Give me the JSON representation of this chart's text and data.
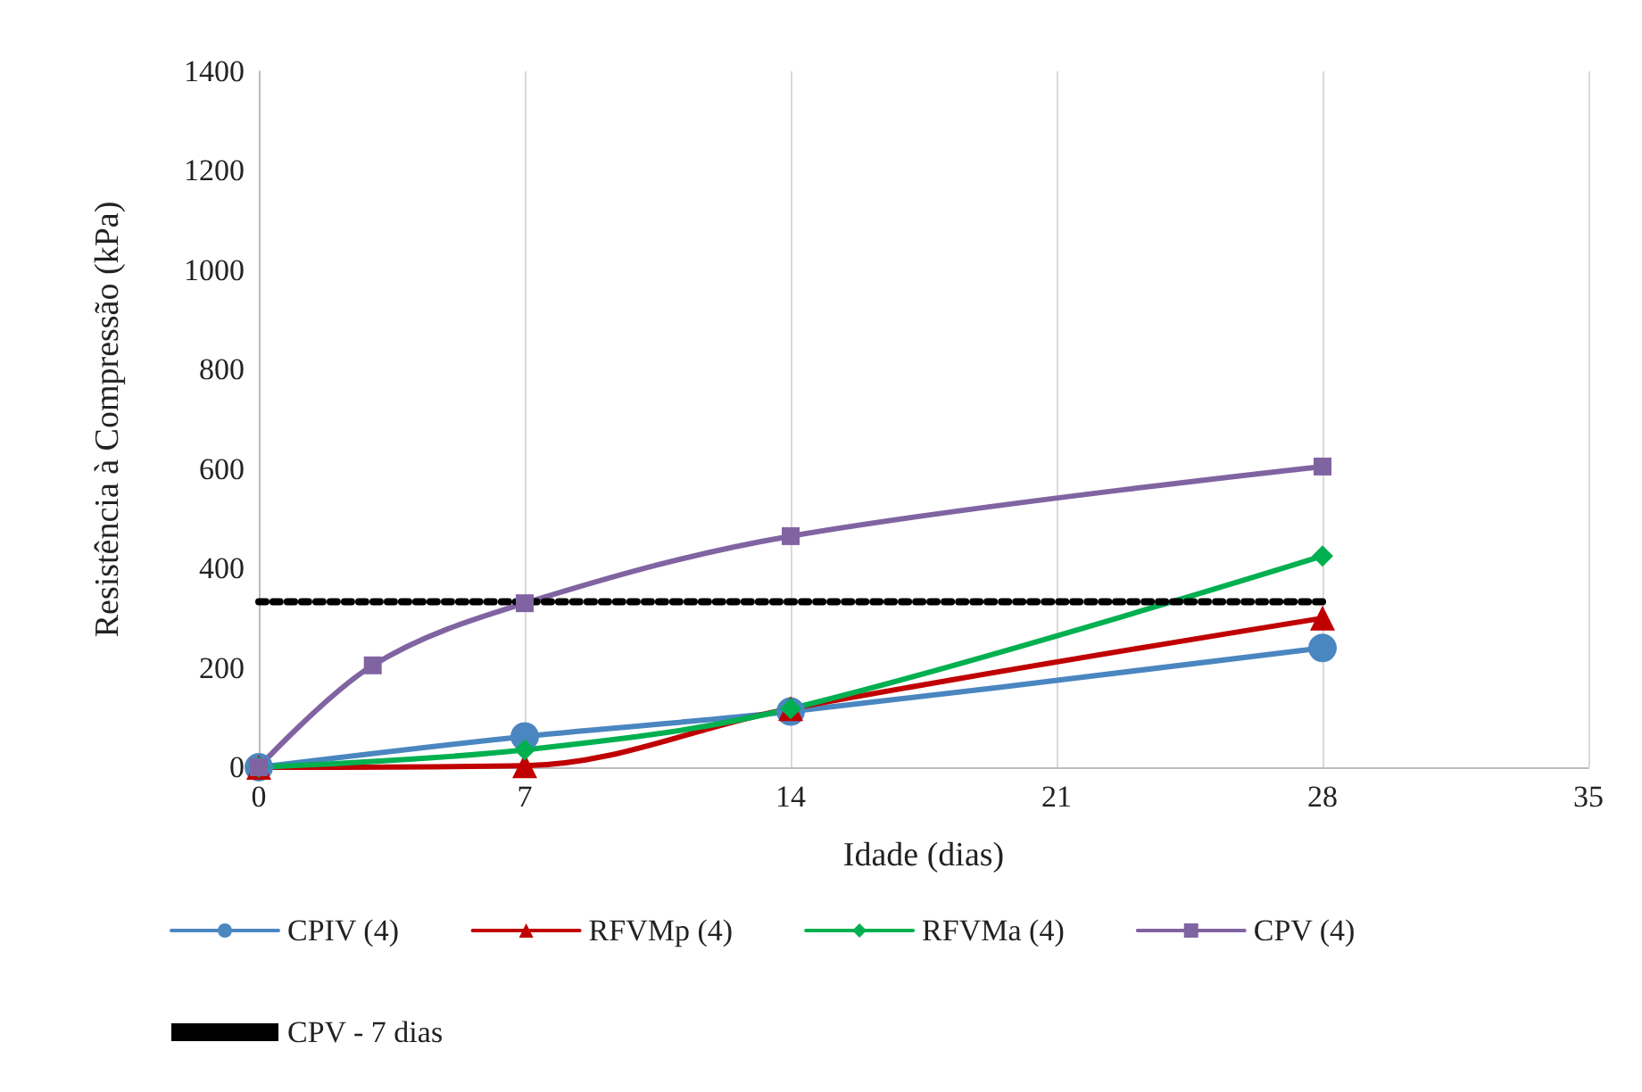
{
  "chart_data": {
    "type": "line",
    "xlabel": "Idade (dias)",
    "ylabel": "Resistência à Compressão (kPa)",
    "xlim": [
      0,
      35
    ],
    "xticks": [
      0,
      7,
      14,
      21,
      28,
      35
    ],
    "ylim": [
      0,
      1400
    ],
    "yticks": [
      0,
      200,
      400,
      600,
      800,
      1000,
      1200,
      1400
    ],
    "grid": "x",
    "legend": "bottom",
    "series": [
      {
        "name": "CPIV (4)",
        "color": "#4a86c0",
        "marker": "circle",
        "x": [
          0,
          7,
          14,
          28
        ],
        "values": [
          0,
          62,
          112,
          240
        ]
      },
      {
        "name": "RFVMp (4)",
        "color": "#c00000",
        "marker": "triangle",
        "x": [
          0,
          7,
          14,
          28
        ],
        "values": [
          0,
          3,
          118,
          300
        ]
      },
      {
        "name": "RFVMa (4)",
        "color": "#00b050",
        "marker": "diamond",
        "x": [
          0,
          7,
          14,
          28
        ],
        "values": [
          0,
          35,
          118,
          425
        ]
      },
      {
        "name": "CPV (4)",
        "color": "#8064a2",
        "marker": "square",
        "x": [
          0,
          3,
          7,
          14,
          28
        ],
        "values": [
          0,
          205,
          330,
          465,
          605
        ]
      },
      {
        "name": "CPV - 7 dias",
        "color": "#000000",
        "marker": "none",
        "line_style": "dotted",
        "x": [
          0,
          28
        ],
        "values": [
          333,
          333
        ]
      }
    ]
  }
}
